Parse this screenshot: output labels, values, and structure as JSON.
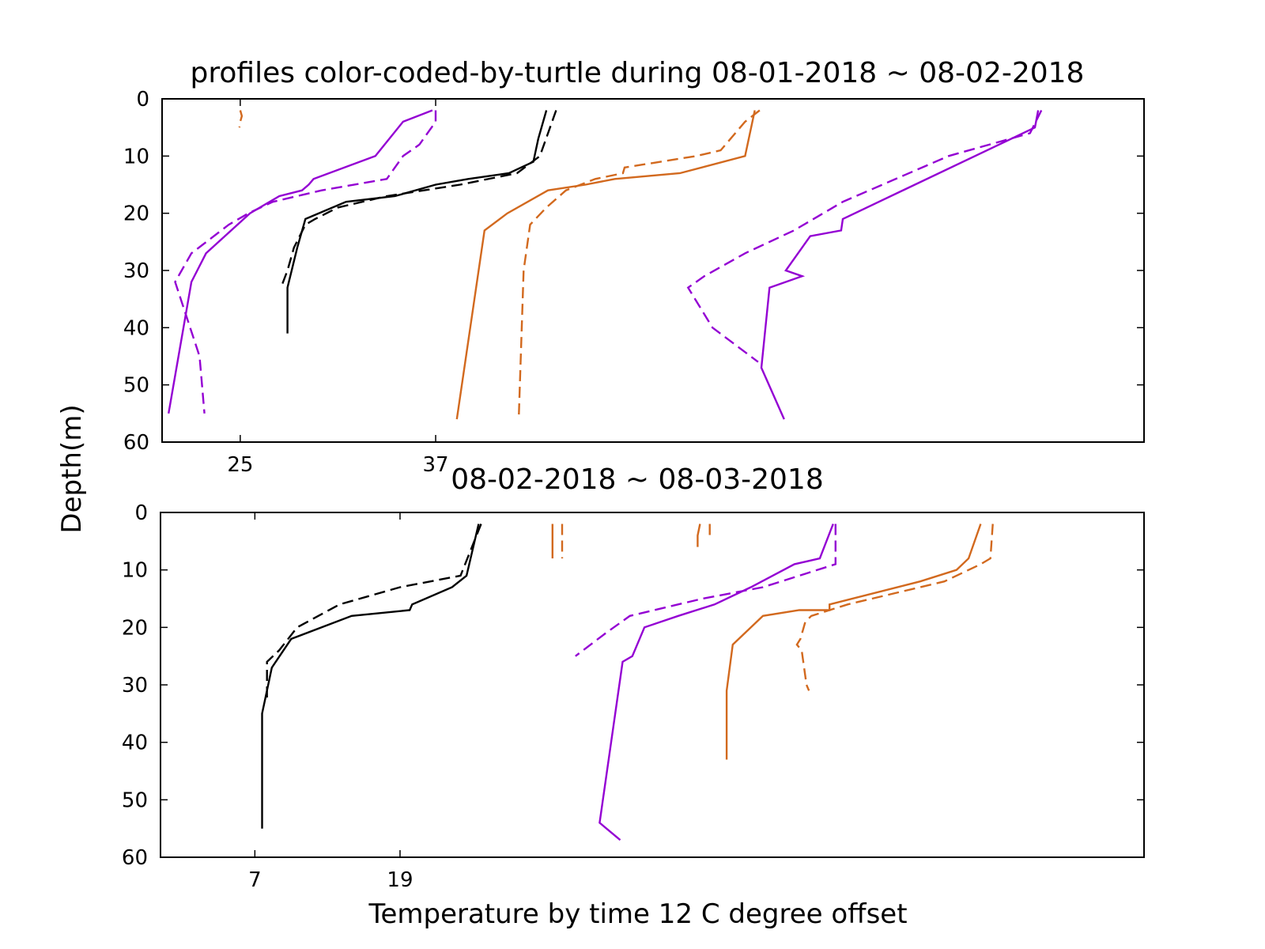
{
  "figure": {
    "ylabel": "Depth(m)",
    "xlabel": "Temperature by time 12 C degree offset"
  },
  "colors": {
    "purple": "#9400D3",
    "black": "#000000",
    "orange": "#D2691E"
  },
  "chart_data": [
    {
      "type": "line",
      "title": "profiles color-coded-by-turtle during 08-01-2018 ~ 08-02-2018",
      "xlim": [
        20.2,
        80.5
      ],
      "ylim": [
        60,
        0
      ],
      "xticks": [
        25,
        37
      ],
      "yticks": [
        0,
        10,
        20,
        30,
        40,
        50,
        60
      ],
      "series": [
        {
          "color": "orange",
          "style": "dashed",
          "points": [
            [
              25.0,
              2
            ],
            [
              25.1,
              3
            ],
            [
              25.0,
              4
            ],
            [
              24.95,
              5
            ]
          ]
        },
        {
          "color": "purple",
          "style": "solid",
          "points": [
            [
              36.8,
              2
            ],
            [
              35.0,
              4
            ],
            [
              33.3,
              10
            ],
            [
              29.5,
              14
            ],
            [
              29.2,
              15
            ],
            [
              28.8,
              16
            ],
            [
              27.4,
              17
            ],
            [
              25.6,
              20
            ],
            [
              22.9,
              27
            ],
            [
              22.0,
              32
            ],
            [
              20.6,
              55
            ]
          ]
        },
        {
          "color": "purple",
          "style": "dashed",
          "points": [
            [
              37.0,
              2
            ],
            [
              37.0,
              4
            ],
            [
              36.0,
              8
            ],
            [
              35.0,
              10
            ],
            [
              34.0,
              14
            ],
            [
              30.0,
              16
            ],
            [
              27.0,
              18
            ],
            [
              25.5,
              20
            ],
            [
              24.3,
              22
            ],
            [
              22.0,
              27
            ],
            [
              21.0,
              32
            ],
            [
              22.5,
              45
            ],
            [
              22.8,
              55
            ]
          ]
        },
        {
          "color": "black",
          "style": "solid",
          "points": [
            [
              43.8,
              2
            ],
            [
              43.3,
              7
            ],
            [
              43.0,
              11
            ],
            [
              41.5,
              13
            ],
            [
              39.0,
              14
            ],
            [
              37.0,
              15
            ],
            [
              34.5,
              17
            ],
            [
              31.5,
              18
            ],
            [
              29.0,
              21
            ],
            [
              28.5,
              26
            ],
            [
              27.9,
              33
            ],
            [
              27.9,
              41
            ]
          ]
        },
        {
          "color": "black",
          "style": "dashed",
          "points": [
            [
              44.4,
              2
            ],
            [
              43.4,
              10
            ],
            [
              42.0,
              13
            ],
            [
              38.5,
              15
            ],
            [
              34.0,
              17
            ],
            [
              31.0,
              19
            ],
            [
              29.6,
              21
            ],
            [
              29.0,
              22
            ],
            [
              28.3,
              26
            ],
            [
              27.9,
              30
            ],
            [
              27.5,
              33
            ]
          ]
        },
        {
          "color": "orange",
          "style": "solid",
          "points": [
            [
              56.6,
              2
            ],
            [
              56.0,
              10
            ],
            [
              52.0,
              13
            ],
            [
              48.0,
              14
            ],
            [
              46.2,
              15
            ],
            [
              43.9,
              16
            ],
            [
              41.4,
              20
            ],
            [
              40.0,
              23
            ],
            [
              38.3,
              56
            ]
          ]
        },
        {
          "color": "orange",
          "style": "dashed",
          "points": [
            [
              56.9,
              2
            ],
            [
              56.0,
              4
            ],
            [
              54.5,
              9
            ],
            [
              53.0,
              10
            ],
            [
              48.6,
              12
            ],
            [
              48.5,
              13
            ],
            [
              46.8,
              14
            ],
            [
              45.0,
              16
            ],
            [
              43.8,
              19
            ],
            [
              42.8,
              22
            ],
            [
              42.4,
              30
            ],
            [
              42.1,
              56
            ]
          ]
        },
        {
          "color": "purple",
          "style": "solid",
          "points": [
            [
              74.0,
              2
            ],
            [
              73.8,
              5
            ],
            [
              62.0,
              21
            ],
            [
              61.9,
              23
            ],
            [
              60.0,
              24
            ],
            [
              58.5,
              30
            ],
            [
              59.5,
              31
            ],
            [
              57.5,
              33
            ],
            [
              57.0,
              47
            ],
            [
              58.4,
              56
            ]
          ]
        },
        {
          "color": "purple",
          "style": "dashed",
          "points": [
            [
              74.2,
              2
            ],
            [
              73.5,
              6
            ],
            [
              68.5,
              10
            ],
            [
              62.0,
              18
            ],
            [
              59.0,
              23
            ],
            [
              56.0,
              27
            ],
            [
              53.5,
              31
            ],
            [
              52.5,
              33
            ],
            [
              54.0,
              40
            ],
            [
              56.8,
              46
            ]
          ]
        }
      ]
    },
    {
      "type": "line",
      "title": "08-02-2018 ~ 08-03-2018",
      "xlim": [
        -0.8,
        80.5
      ],
      "ylim": [
        60,
        0
      ],
      "xticks": [
        7,
        19
      ],
      "yticks": [
        0,
        10,
        20,
        30,
        40,
        50,
        60
      ],
      "series": [
        {
          "color": "black",
          "style": "solid",
          "points": [
            [
              25.5,
              2
            ],
            [
              24.5,
              11
            ],
            [
              23.3,
              13
            ],
            [
              20.0,
              16
            ],
            [
              19.8,
              17
            ],
            [
              15.0,
              18
            ],
            [
              10.0,
              22
            ],
            [
              8.4,
              27
            ],
            [
              8.1,
              30
            ],
            [
              7.6,
              35
            ],
            [
              7.6,
              55
            ]
          ]
        },
        {
          "color": "black",
          "style": "dashed",
          "points": [
            [
              25.7,
              2
            ],
            [
              24.0,
              11
            ],
            [
              19.0,
              13
            ],
            [
              14.0,
              16
            ],
            [
              10.5,
              20
            ],
            [
              9.0,
              24
            ],
            [
              8.0,
              26
            ],
            [
              8.0,
              33
            ]
          ]
        },
        {
          "color": "orange",
          "style": "solid",
          "points": [
            [
              31.6,
              2
            ],
            [
              31.6,
              8
            ]
          ]
        },
        {
          "color": "orange",
          "style": "dashed",
          "points": [
            [
              32.4,
              2
            ],
            [
              32.4,
              8
            ]
          ]
        },
        {
          "color": "orange",
          "style": "solid",
          "points": [
            [
              43.8,
              2
            ],
            [
              43.6,
              4
            ],
            [
              43.6,
              6
            ]
          ]
        },
        {
          "color": "orange",
          "style": "dashed",
          "points": [
            [
              44.6,
              2
            ],
            [
              44.6,
              4
            ]
          ]
        },
        {
          "color": "purple",
          "style": "solid",
          "points": [
            [
              54.8,
              2
            ],
            [
              53.7,
              8
            ],
            [
              51.6,
              9
            ],
            [
              48.0,
              13
            ],
            [
              45.0,
              16
            ],
            [
              42.0,
              18
            ],
            [
              39.2,
              20
            ],
            [
              38.2,
              25
            ],
            [
              37.4,
              26
            ],
            [
              35.5,
              54
            ],
            [
              37.2,
              57
            ]
          ]
        },
        {
          "color": "purple",
          "style": "dashed",
          "points": [
            [
              55.0,
              2
            ],
            [
              55.0,
              9
            ],
            [
              49.0,
              13
            ],
            [
              44.0,
              15
            ],
            [
              38.0,
              18
            ],
            [
              36.0,
              21
            ],
            [
              33.5,
              25
            ]
          ]
        },
        {
          "color": "orange",
          "style": "solid",
          "points": [
            [
              67.0,
              2
            ],
            [
              66.0,
              8
            ],
            [
              65.0,
              10
            ],
            [
              62.0,
              12
            ],
            [
              54.5,
              16
            ],
            [
              54.5,
              17
            ],
            [
              52.0,
              17
            ],
            [
              49.0,
              18
            ],
            [
              46.5,
              23
            ],
            [
              46.0,
              31
            ],
            [
              46.0,
              43
            ]
          ]
        },
        {
          "color": "orange",
          "style": "dashed",
          "points": [
            [
              68.0,
              2
            ],
            [
              67.8,
              8
            ],
            [
              67.0,
              9
            ],
            [
              64.0,
              12
            ],
            [
              56.0,
              16
            ],
            [
              53.0,
              18
            ],
            [
              52.5,
              19
            ],
            [
              52.1,
              22
            ],
            [
              51.8,
              23
            ],
            [
              52.2,
              24
            ],
            [
              52.6,
              30
            ],
            [
              52.8,
              31
            ]
          ]
        }
      ]
    }
  ]
}
